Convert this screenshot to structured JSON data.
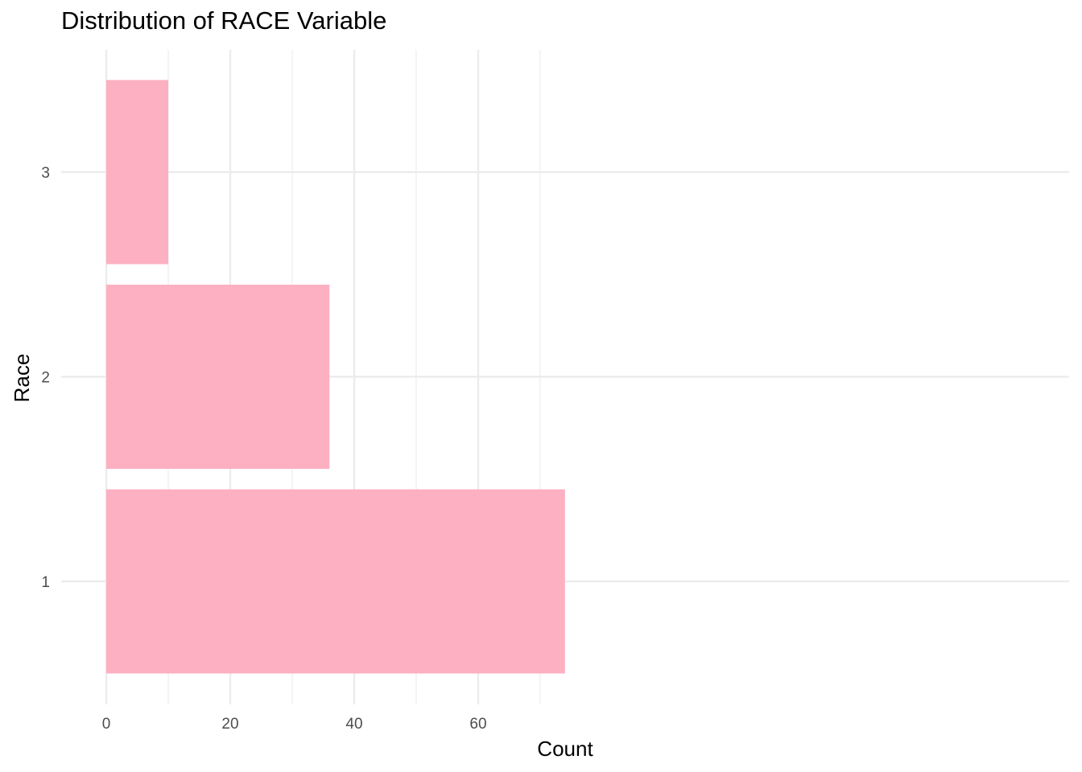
{
  "chart_data": {
    "type": "bar",
    "orientation": "horizontal",
    "title": "Distribution of RACE Variable",
    "xlabel": "Count",
    "ylabel": "Race",
    "categories": [
      "1",
      "2",
      "3"
    ],
    "values": [
      74,
      36,
      10
    ],
    "xlim": [
      0,
      77
    ],
    "x_ticks": [
      "0",
      "20",
      "40",
      "60"
    ],
    "grid": true,
    "legend": "none",
    "bar_color": "#FCB0C1",
    "grid_color": "#EBEBEB"
  }
}
